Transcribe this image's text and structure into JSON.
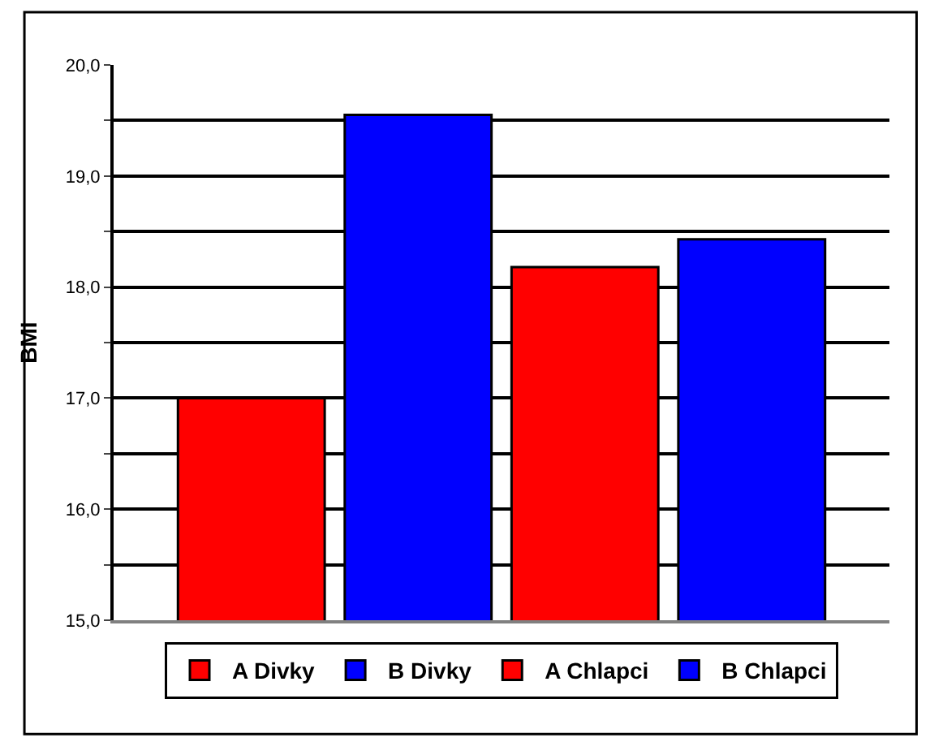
{
  "chart_data": {
    "type": "bar",
    "ylabel": "BMI",
    "categories": [
      null
    ],
    "series": [
      {
        "name": "A Divky",
        "color": "#ff0000",
        "values": [
          17.0
        ]
      },
      {
        "name": "B Divky",
        "color": "#0000ff",
        "values": [
          19.55
        ]
      },
      {
        "name": "A Chlapci",
        "color": "#ff0000",
        "values": [
          18.18
        ]
      },
      {
        "name": "B Chlapci",
        "color": "#0000ff",
        "values": [
          18.43
        ]
      }
    ],
    "ylim": [
      15,
      20
    ],
    "yticks": [
      {
        "value": 15,
        "label": "15,0"
      },
      {
        "value": 15.5,
        "label": null
      },
      {
        "value": 16,
        "label": "16,0"
      },
      {
        "value": 16.5,
        "label": null
      },
      {
        "value": 17,
        "label": "17,0"
      },
      {
        "value": 17.5,
        "label": null
      },
      {
        "value": 18,
        "label": "18,0"
      },
      {
        "value": 18.5,
        "label": null
      },
      {
        "value": 19,
        "label": "19,0"
      },
      {
        "value": 19.5,
        "label": null
      },
      {
        "value": 20,
        "label": "20,0"
      }
    ],
    "grid": "y",
    "legend": "bottom",
    "tick_labels": "y"
  }
}
